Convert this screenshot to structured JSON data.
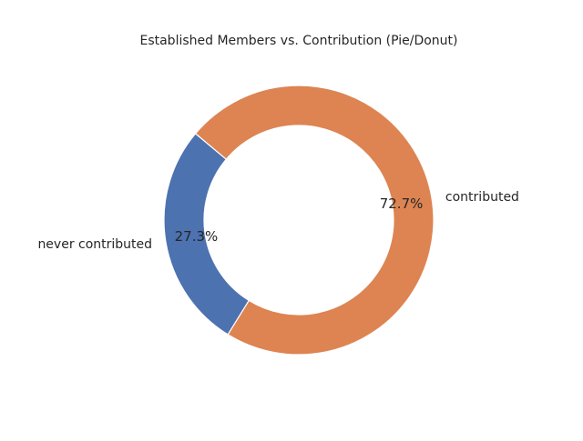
{
  "chart_data": {
    "type": "pie",
    "style": "donut",
    "title": "Established Members vs. Contribution (Pie/Donut)",
    "slices": [
      {
        "label": "never contributed",
        "value": 27.3,
        "pct_label": "27.3%",
        "color": "#4c72b0"
      },
      {
        "label": "contributed",
        "value": 72.7,
        "pct_label": "72.7%",
        "color": "#dd8452"
      }
    ],
    "start_angle_deg": 140,
    "direction": "counterclockwise",
    "edge_color": "#ffffff"
  }
}
